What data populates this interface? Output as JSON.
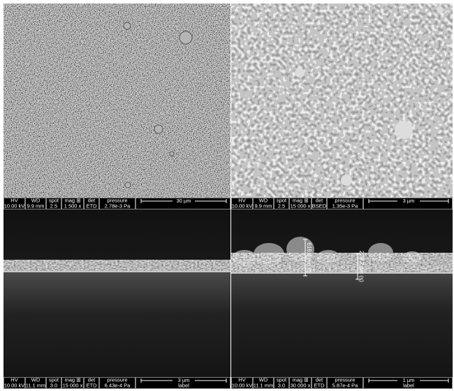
{
  "info_headers": [
    "HV",
    "WD",
    "spot",
    "mag ⊞",
    "det",
    "pressure"
  ],
  "panels": [
    {
      "values": [
        "10.00 kV",
        "9.9 mm",
        "2.5",
        "1 500 x",
        "ETD",
        "2.78e-3 Pa"
      ],
      "scale": "30 µm"
    },
    {
      "values": [
        "10.00 kV",
        "9.9 mm",
        "2.5",
        "15 000 x",
        "BSED",
        "1.35e-3 Pa"
      ],
      "scale": "3 µm"
    },
    {
      "values": [
        "10.00 kV",
        "11.1 mm",
        "3.0",
        "15 000 x",
        "ETD",
        "6.43e-4 Pa"
      ],
      "scale": "3 µm",
      "label": "label"
    },
    {
      "values": [
        "10.00 kV",
        "11.1 mm",
        "3.0",
        "30 000 x",
        "ETD",
        "5.87e-4 Pa"
      ],
      "scale": "1 µm",
      "label": "label",
      "annotations": [
        "616.0 nm (t)",
        "228.2 nm (s)"
      ]
    }
  ]
}
